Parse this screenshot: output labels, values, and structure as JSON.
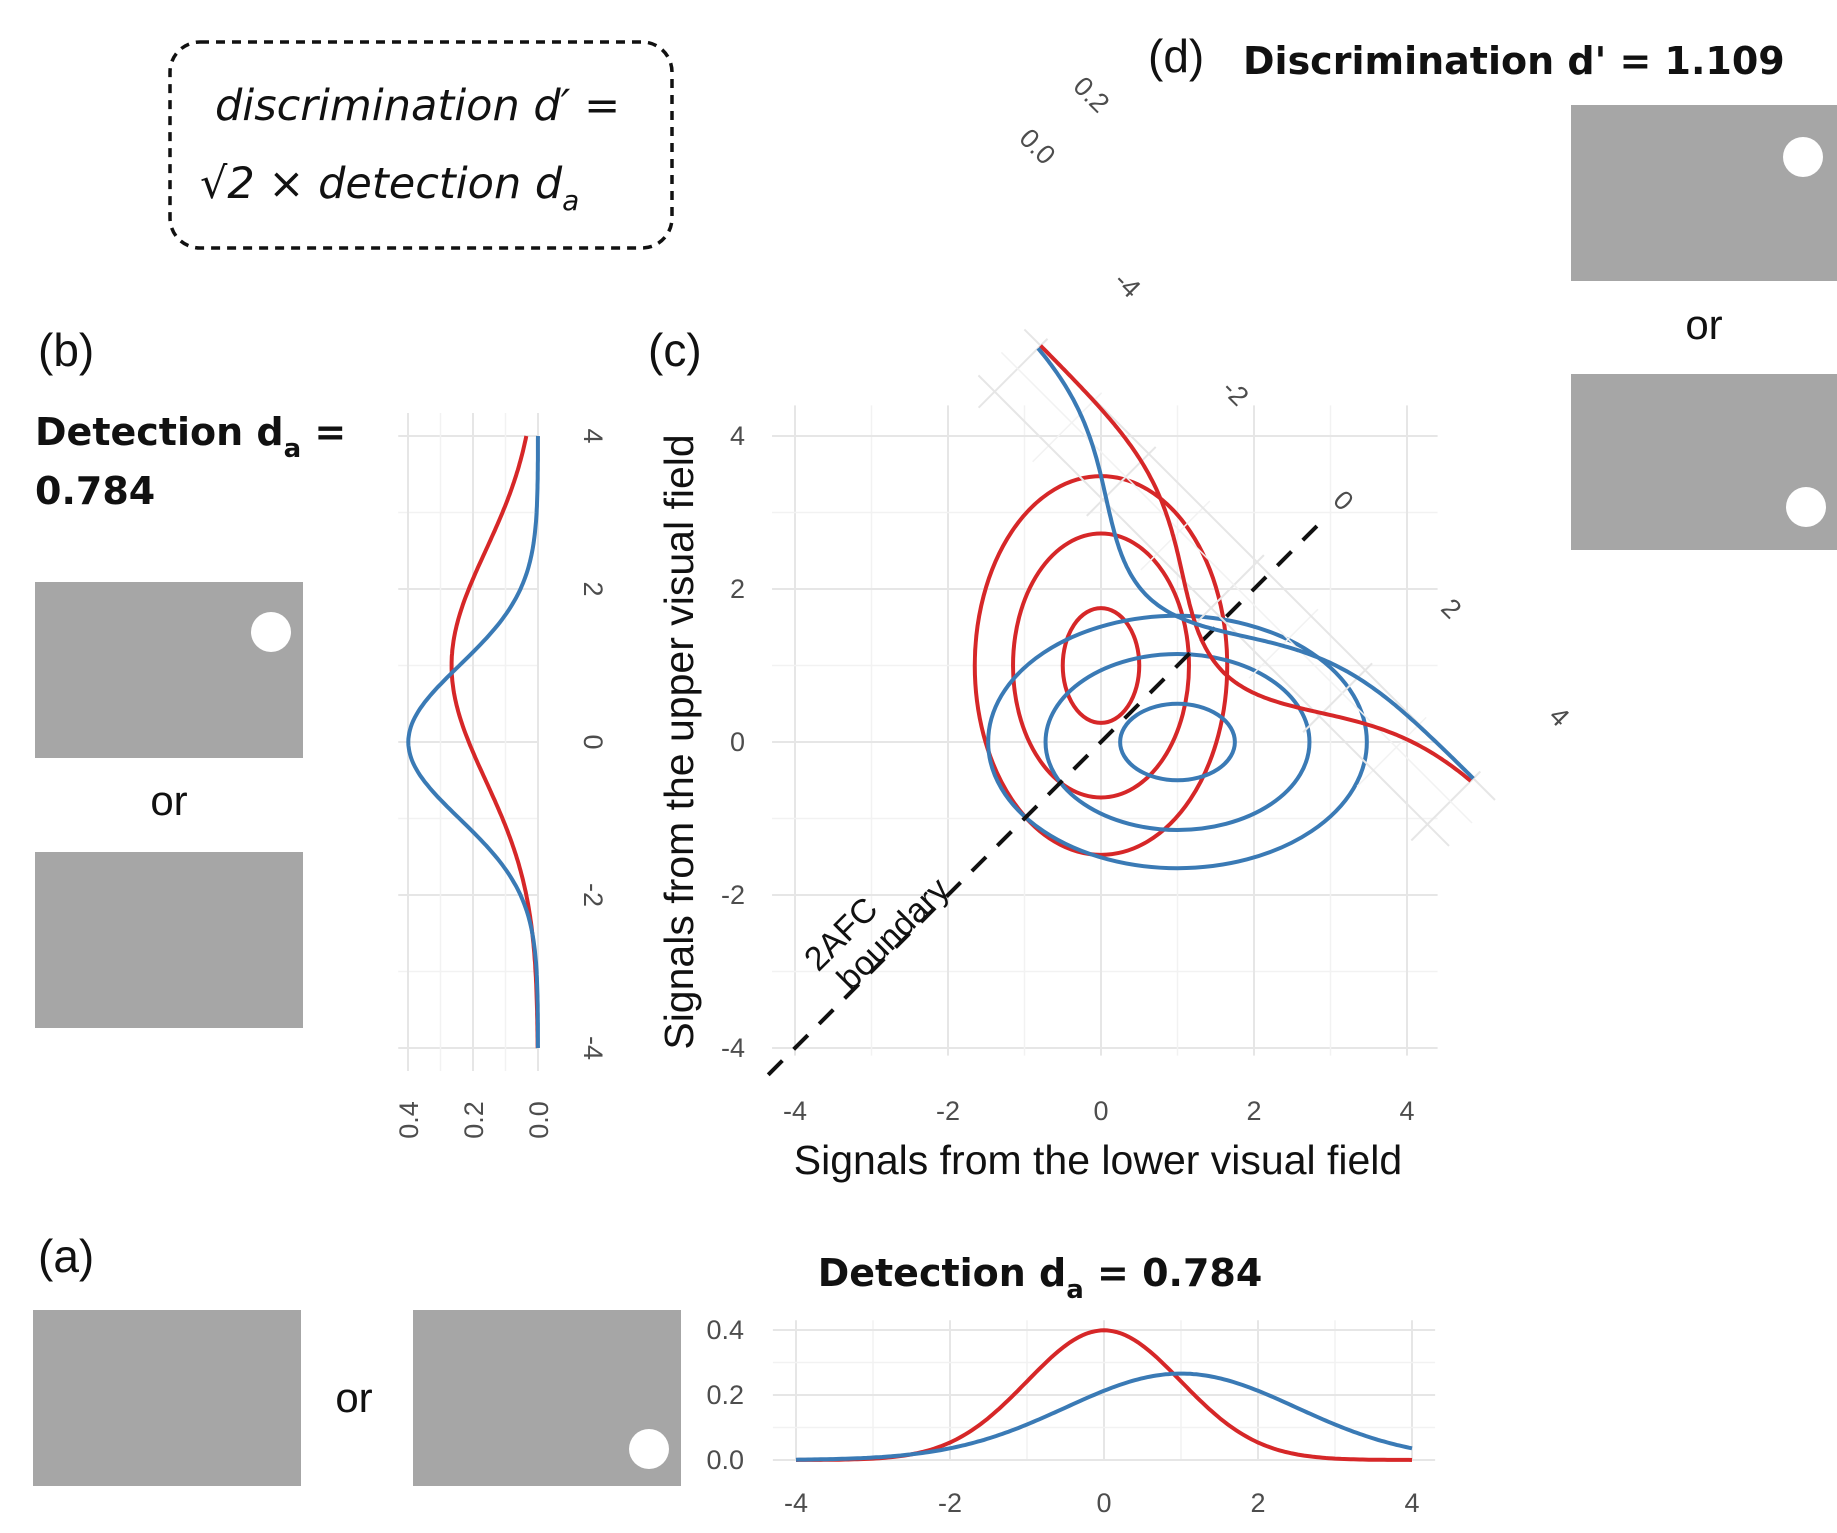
{
  "formula_box": {
    "line1": "discrimination d′ =",
    "line2": "√2 × detection d",
    "line2_subscript": "a"
  },
  "panel_a": {
    "label": "(a)",
    "title_main": "Detection d",
    "title_sub": "a",
    "title_tail": " = 0.784",
    "or_text": "or",
    "x_ticks": [
      "-4",
      "-2",
      "0",
      "2",
      "4"
    ],
    "y_ticks": [
      "0.0",
      "0.2",
      "0.4"
    ]
  },
  "panel_b": {
    "label": "(b)",
    "title_main": "Detection d",
    "title_sub": "a",
    "title_tail": " =",
    "title_line2": "0.784",
    "or_text": "or",
    "value_ticks": [
      "-4",
      "-2",
      "0",
      "2",
      "4"
    ],
    "density_ticks": [
      "0.4",
      "0.2",
      "0.0"
    ]
  },
  "panel_c": {
    "label": "(c)",
    "xlabel": "Signals from the lower visual field",
    "ylabel": "Signals from the upper visual field",
    "x_ticks": [
      "-4",
      "-2",
      "0",
      "2",
      "4"
    ],
    "y_ticks": [
      "-4",
      "-2",
      "0",
      "2",
      "4"
    ],
    "boundary_line1": "2AFC",
    "boundary_line2": "boundary"
  },
  "panel_d": {
    "label": "(d)",
    "title": "Discrimination d' = 1.109",
    "or_text": "or",
    "value_ticks": [
      "-4",
      "-2",
      "0",
      "2",
      "4"
    ],
    "density_ticks": [
      "0.0",
      "0.2"
    ]
  },
  "colors": {
    "red_series": "#d62728",
    "blue_series": "#3a7ab5",
    "stimulus_gray": "#a6a6a6"
  },
  "chart_data": [
    {
      "panel": "a",
      "type": "line",
      "title": "Detection d_a = 0.784",
      "xlim": [
        -4,
        4
      ],
      "ylim": [
        0,
        0.4
      ],
      "series": [
        {
          "color": "red",
          "distribution": "normal",
          "mean": 0,
          "sd": 1
        },
        {
          "color": "blue",
          "distribution": "normal",
          "mean": 1,
          "sd": 1.5
        }
      ]
    },
    {
      "panel": "b",
      "type": "line",
      "title": "Detection d_a = 0.784",
      "xlim": [
        -4,
        4
      ],
      "ylim": [
        0,
        0.4
      ],
      "orientation": "vertical",
      "series": [
        {
          "color": "red",
          "distribution": "normal",
          "mean": 1,
          "sd": 1.5
        },
        {
          "color": "blue",
          "distribution": "normal",
          "mean": 0,
          "sd": 1
        }
      ]
    },
    {
      "panel": "c",
      "type": "line",
      "xlabel": "Signals from the lower visual field",
      "ylabel": "Signals from the upper visual field",
      "xlim": [
        -4,
        4
      ],
      "ylim": [
        -4,
        4
      ],
      "contours": [
        {
          "color": "red",
          "center": [
            0,
            1
          ],
          "sd_x": 1,
          "sd_y": 1.5,
          "levels": [
            0.5,
            1.15,
            1.65
          ]
        },
        {
          "color": "blue",
          "center": [
            1,
            0
          ],
          "sd_x": 1.5,
          "sd_y": 1,
          "levels": [
            0.5,
            1.15,
            1.65
          ]
        }
      ],
      "boundary": {
        "style": "dashed",
        "equation": "y = x"
      }
    },
    {
      "panel": "d",
      "type": "line",
      "title": "Discrimination d' = 1.109",
      "xlim": [
        -4,
        4
      ],
      "ylim": [
        0,
        0.2
      ],
      "orientation": "rotated -45 degrees",
      "series": [
        {
          "color": "red",
          "distribution": "normal",
          "mean": 0.707,
          "sd": 1.275
        },
        {
          "color": "blue",
          "distribution": "normal",
          "mean": -0.707,
          "sd": 1.275
        }
      ]
    }
  ]
}
